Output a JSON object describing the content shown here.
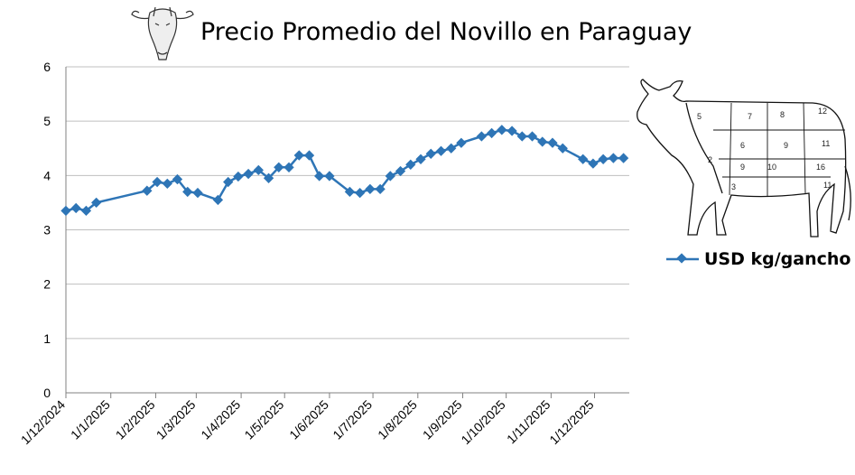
{
  "chart_data": {
    "type": "line",
    "title": "Precio Promedio del Novillo en Paraguay",
    "xlabel": "",
    "ylabel": "",
    "ylim": [
      0,
      6
    ],
    "y_ticks": [
      "0",
      "1",
      "2",
      "3",
      "4",
      "5",
      "6"
    ],
    "x_ticks": [
      "1/12/2024",
      "1/1/2025",
      "1/2/2025",
      "1/3/2025",
      "1/4/2025",
      "1/5/2025",
      "1/6/2025",
      "1/7/2025",
      "1/8/2025",
      "1/9/2025",
      "1/10/2025",
      "1/11/2025",
      "1/12/2025"
    ],
    "x_domain": [
      "2024-12-01",
      "2025-12-25"
    ],
    "grid": "horizontal",
    "legend_position": "right",
    "series": [
      {
        "name": "USD kg/gancho",
        "color": "#2e75b6",
        "marker": "diamond",
        "x": [
          "2024-12-01",
          "2024-12-08",
          "2024-12-15",
          "2024-12-22",
          "2025-01-26",
          "2025-02-02",
          "2025-02-09",
          "2025-02-16",
          "2025-02-23",
          "2025-03-02",
          "2025-03-16",
          "2025-03-23",
          "2025-03-30",
          "2025-04-06",
          "2025-04-13",
          "2025-04-20",
          "2025-04-27",
          "2025-05-04",
          "2025-05-11",
          "2025-05-18",
          "2025-05-25",
          "2025-06-01",
          "2025-06-15",
          "2025-06-22",
          "2025-06-29",
          "2025-07-06",
          "2025-07-13",
          "2025-07-20",
          "2025-07-27",
          "2025-08-03",
          "2025-08-10",
          "2025-08-17",
          "2025-08-24",
          "2025-08-31",
          "2025-09-14",
          "2025-09-21",
          "2025-09-28",
          "2025-10-05",
          "2025-10-12",
          "2025-10-19",
          "2025-10-26",
          "2025-11-02",
          "2025-11-09",
          "2025-11-23",
          "2025-11-30",
          "2025-12-07",
          "2025-12-14",
          "2025-12-21"
        ],
        "values": [
          3.35,
          3.4,
          3.35,
          3.5,
          3.72,
          3.88,
          3.85,
          3.93,
          3.7,
          3.68,
          3.55,
          3.88,
          3.98,
          4.03,
          4.1,
          3.95,
          4.15,
          4.15,
          4.37,
          4.37,
          3.99,
          3.99,
          3.7,
          3.68,
          3.75,
          3.75,
          3.99,
          4.08,
          4.2,
          4.3,
          4.4,
          4.45,
          4.5,
          4.6,
          4.72,
          4.78,
          4.84,
          4.82,
          4.72,
          4.72,
          4.62,
          4.6,
          4.5,
          4.3,
          4.22,
          4.3,
          4.32,
          4.32
        ]
      }
    ]
  },
  "icons": {
    "cow_head": "cow-head-sketch-icon",
    "cow_body": "cow-beef-cuts-diagram-icon"
  }
}
